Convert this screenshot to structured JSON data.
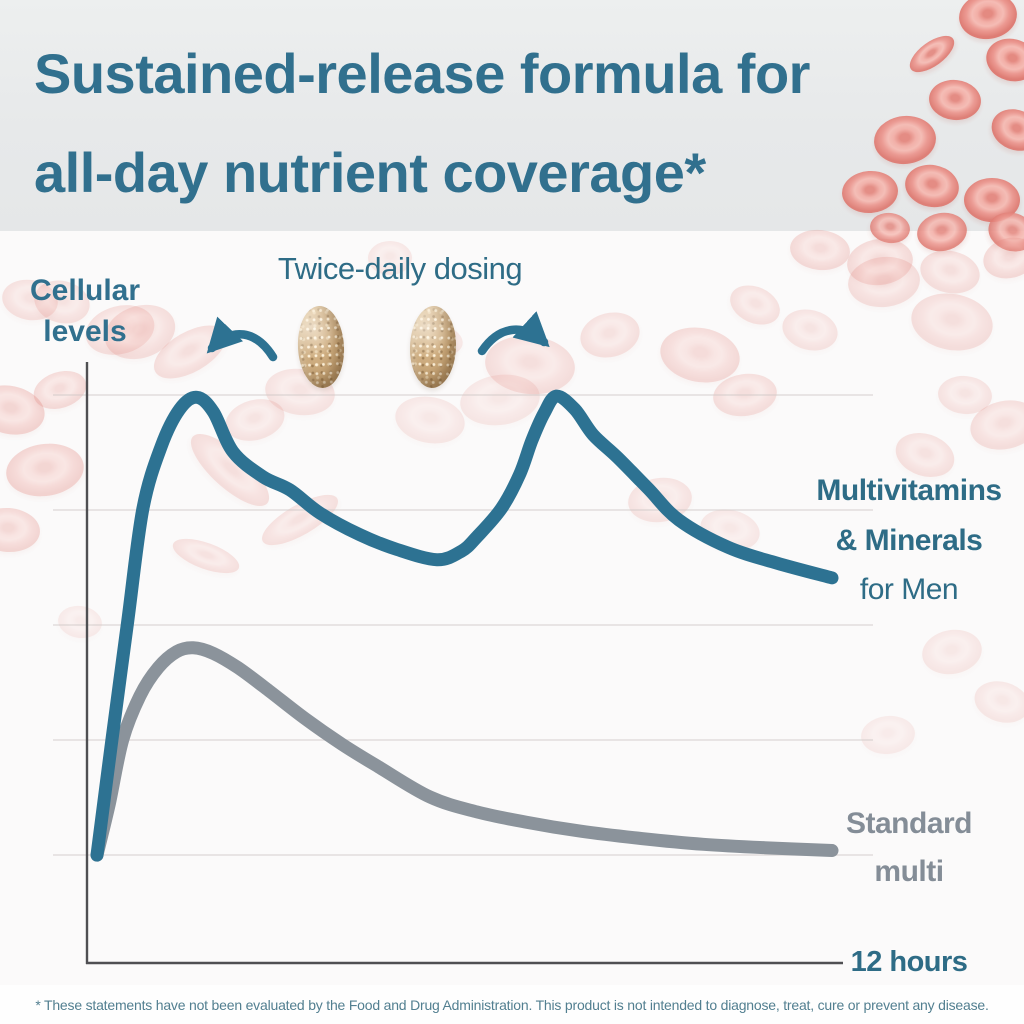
{
  "header": {
    "title_line1": "Sustained-release formula for",
    "title_line2": "all-day nutrient coverage*"
  },
  "chart": {
    "y_axis_label": [
      "Cellular",
      "levels"
    ],
    "x_axis_label": "12 hours",
    "annotation": "Twice-daily dosing",
    "series_labels": {
      "multivitamins": {
        "line1": "Multivitamins",
        "line2": "& Minerals",
        "line3": "for Men"
      },
      "standard": {
        "line1": "Standard",
        "line2": "multi"
      }
    }
  },
  "chart_data": {
    "type": "line",
    "title": "Sustained-release formula for all-day nutrient coverage*",
    "xlabel": "12 hours",
    "ylabel": "Cellular levels",
    "x_range_hours": [
      0,
      12
    ],
    "ylim": [
      0,
      110
    ],
    "grid": true,
    "legend_position": "right-inline",
    "annotations": [
      "Twice-daily dosing"
    ],
    "series": [
      {
        "name": "Multivitamins & Minerals for Men",
        "color": "#2d7292",
        "points": [
          [
            0,
            19
          ],
          [
            0.24,
            39
          ],
          [
            0.5,
            60
          ],
          [
            0.75,
            80
          ],
          [
            1.05,
            91
          ],
          [
            1.35,
            97.5
          ],
          [
            1.63,
            99.6
          ],
          [
            1.9,
            97
          ],
          [
            2.22,
            90
          ],
          [
            2.71,
            85.6
          ],
          [
            3.15,
            83.3
          ],
          [
            3.64,
            79.2
          ],
          [
            4.29,
            75.4
          ],
          [
            4.9,
            72.8
          ],
          [
            5.55,
            71
          ],
          [
            5.95,
            72.5
          ],
          [
            6.2,
            75
          ],
          [
            6.6,
            80
          ],
          [
            6.9,
            86
          ],
          [
            7.1,
            92
          ],
          [
            7.3,
            96.8
          ],
          [
            7.5,
            99.8
          ],
          [
            7.8,
            97.5
          ],
          [
            8.1,
            93
          ],
          [
            8.5,
            89
          ],
          [
            9.0,
            83.5
          ],
          [
            9.5,
            78
          ],
          [
            10.3,
            73.2
          ],
          [
            11.1,
            70.4
          ],
          [
            12,
            67.8
          ]
        ]
      },
      {
        "name": "Standard multi",
        "color": "#8b939b",
        "points": [
          [
            0,
            19
          ],
          [
            0.2,
            28
          ],
          [
            0.42,
            39.3
          ],
          [
            0.7,
            47
          ],
          [
            1.0,
            52
          ],
          [
            1.3,
            54.8
          ],
          [
            1.57,
            55.5
          ],
          [
            1.9,
            54.5
          ],
          [
            2.3,
            52
          ],
          [
            2.8,
            48
          ],
          [
            3.4,
            43
          ],
          [
            4.0,
            38.5
          ],
          [
            4.6,
            34.5
          ],
          [
            5.44,
            29.2
          ],
          [
            6.2,
            26.6
          ],
          [
            7.0,
            24.8
          ],
          [
            7.9,
            23.2
          ],
          [
            8.9,
            21.9
          ],
          [
            9.9,
            20.9
          ],
          [
            10.9,
            20.3
          ],
          [
            12,
            19.8
          ]
        ]
      }
    ]
  },
  "footer": {
    "disclaimer": "* These statements have not been evaluated by the Food and Drug Administration. This product is not intended to diagnose, treat, cure or prevent any disease."
  },
  "colors": {
    "headline": "#31708e",
    "label_teal": "#2e6c86",
    "curve_teal": "#2d7292",
    "curve_gray": "#8b939b",
    "gray_text": "#848d97",
    "disclaimer": "#527f90",
    "axis": "#4f4f52",
    "grid": "rgba(205,198,196,0.55)",
    "blood_cell": "#ee9a92",
    "pill": "#c6a476"
  }
}
